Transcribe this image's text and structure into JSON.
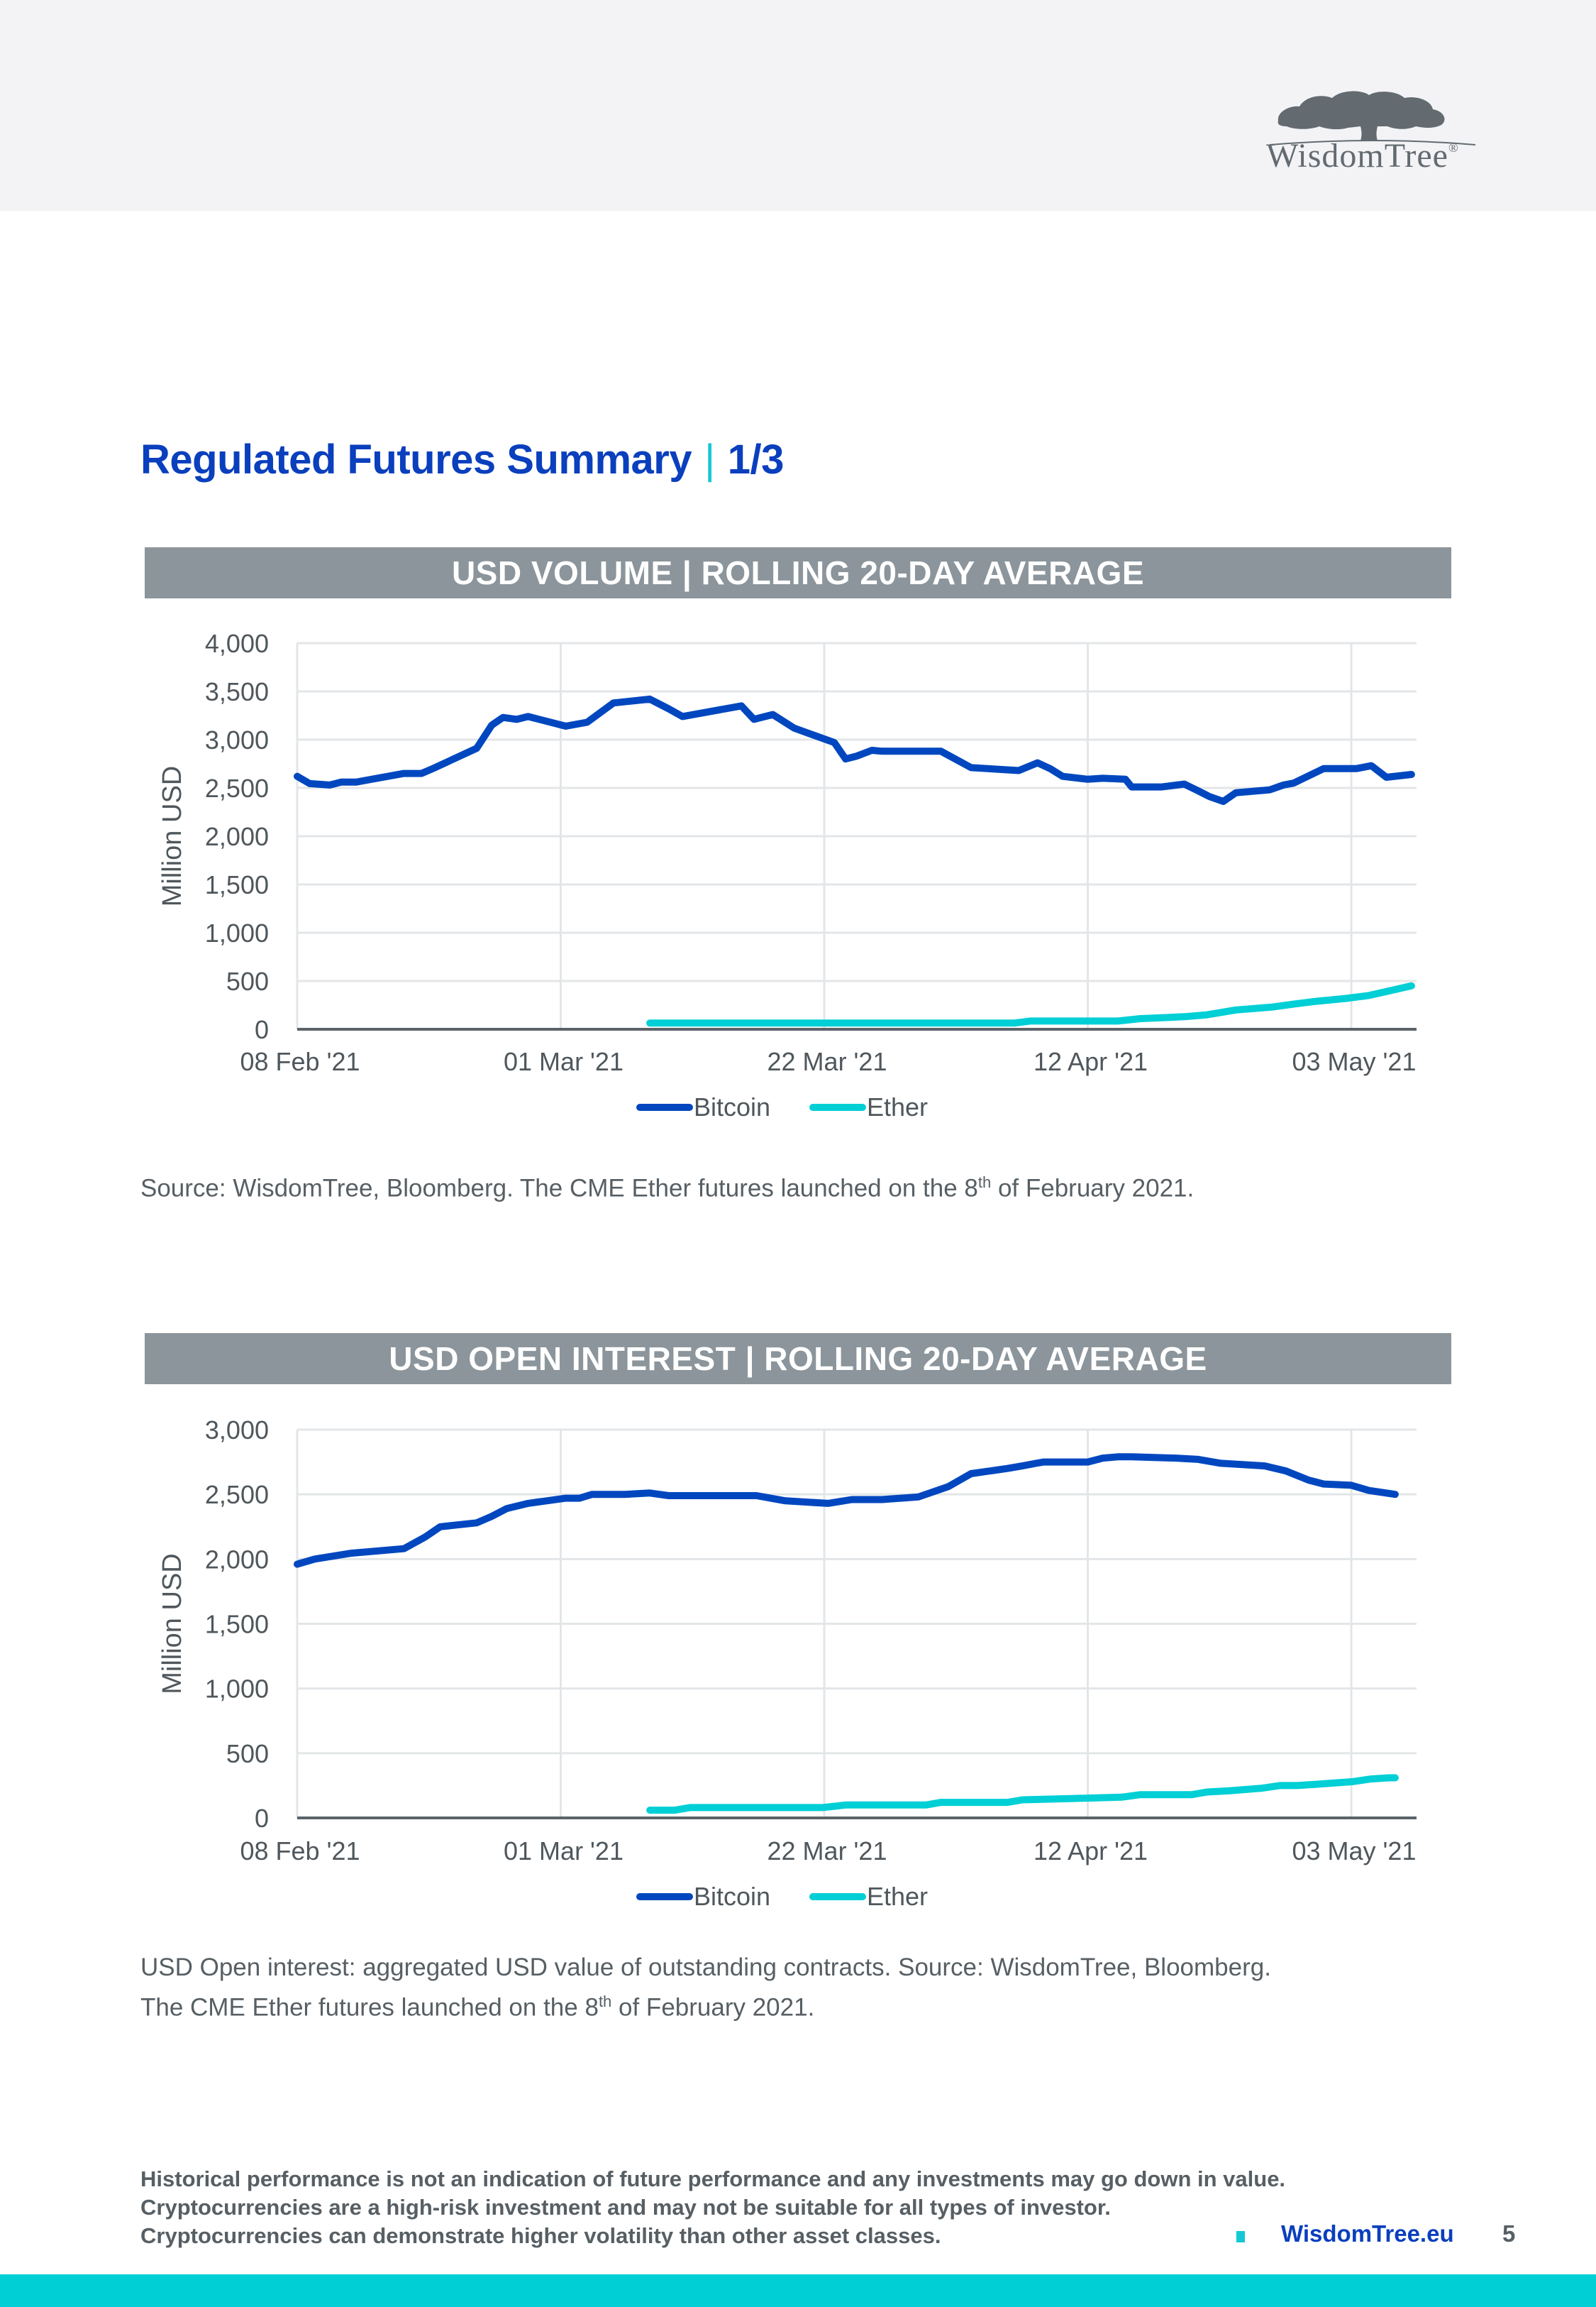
{
  "header": {
    "logo_text": "WisdomTree",
    "logo_registered": "®"
  },
  "page": {
    "title": "Regulated Futures Summary",
    "title_separator": "|",
    "title_page": "1/3",
    "page_number": "5",
    "footer_link": "WisdomTree.eu"
  },
  "colors": {
    "brand_blue": "#0a3fbd",
    "bitcoin": "#0047bf",
    "ether": "#00cfd6",
    "band_gray": "#8b959b",
    "grid": "#e3e6e8",
    "text": "#575f64"
  },
  "notes": {
    "chart1_source_pre": "Source: WisdomTree, Bloomberg. The CME Ether futures launched on the 8",
    "chart1_source_sup": "th",
    "chart1_source_post": " of February 2021.",
    "chart2_line1": "USD Open interest: aggregated USD value of outstanding contracts. Source: WisdomTree, Bloomberg.",
    "chart2_line2_pre": "The CME Ether futures launched on the 8",
    "chart2_line2_sup": "th",
    "chart2_line2_post": " of February 2021."
  },
  "disclaimer": [
    "Historical performance is not an indication of future performance and any investments may go down in value.",
    "Cryptocurrencies are a high-risk investment and may not be suitable for all types of investor.",
    "Cryptocurrencies can demonstrate higher volatility than other asset classes."
  ],
  "chart_data": [
    {
      "type": "line",
      "title": "USD VOLUME | ROLLING 20-DAY AVERAGE",
      "xlabel": "",
      "ylabel": "Million USD",
      "x_unit": "days since 08 Feb '21",
      "xlim": [
        0,
        88.8
      ],
      "ylim": [
        0,
        4000
      ],
      "yticks": [
        0,
        500,
        1000,
        1500,
        2000,
        2500,
        3000,
        3500,
        4000
      ],
      "ytick_labels": [
        "0",
        "500",
        "1,000",
        "1,500",
        "2,000",
        "2,500",
        "3,000",
        "3,500",
        "4,000"
      ],
      "xticks": [
        0,
        21,
        42,
        63,
        84
      ],
      "xtick_labels": [
        "08 Feb '21",
        "01 Mar '21",
        "22 Mar '21",
        "12 Apr '21",
        "03 May '21"
      ],
      "grid": true,
      "legend": "bottom-center",
      "series": [
        {
          "name": "Bitcoin",
          "color": "#0047bf",
          "x": [
            0,
            1,
            2.6,
            3.5,
            4.7,
            8.5,
            9.9,
            10.8,
            14.3,
            15.5,
            16.4,
            17.5,
            18.4,
            21.4,
            23.1,
            25.2,
            28.1,
            29.6,
            30.7,
            35.4,
            36.4,
            37.9,
            39.6,
            42.8,
            43.7,
            44.6,
            45.8,
            46.6,
            51.3,
            53.7,
            57.5,
            59,
            60,
            61,
            63,
            64.2,
            66,
            66.5,
            68.9,
            70.7,
            71.8,
            72.7,
            73.8,
            74.8,
            77.5,
            78.6,
            79.4,
            81.8,
            84.4,
            85.6,
            86.8,
            88.8
          ],
          "values": [
            2620,
            2545,
            2530,
            2560,
            2560,
            2650,
            2650,
            2700,
            2910,
            3150,
            3230,
            3210,
            3240,
            3140,
            3180,
            3380,
            3420,
            3320,
            3240,
            3350,
            3210,
            3260,
            3120,
            2970,
            2800,
            2830,
            2890,
            2880,
            2880,
            2710,
            2680,
            2760,
            2700,
            2620,
            2590,
            2600,
            2590,
            2510,
            2510,
            2540,
            2470,
            2410,
            2360,
            2450,
            2480,
            2530,
            2550,
            2700,
            2700,
            2730,
            2610,
            2640
          ]
        },
        {
          "name": "Ether",
          "color": "#00cfd6",
          "x": [
            28.1,
            57.2,
            58.4,
            65.4,
            67.2,
            70.7,
            72.5,
            74.8,
            77.7,
            79.4,
            81.2,
            83.6,
            85.4,
            87.1,
            88.8
          ],
          "values": [
            65,
            65,
            85,
            85,
            110,
            130,
            150,
            200,
            230,
            260,
            290,
            320,
            350,
            400,
            450
          ]
        }
      ]
    },
    {
      "type": "line",
      "title": "USD OPEN INTEREST | ROLLING 20-DAY AVERAGE",
      "xlabel": "",
      "ylabel": "Million USD",
      "x_unit": "days since 08 Feb '21",
      "xlim": [
        0,
        88.8
      ],
      "ylim": [
        0,
        3000
      ],
      "yticks": [
        0,
        500,
        1000,
        1500,
        2000,
        2500,
        3000
      ],
      "ytick_labels": [
        "0",
        "500",
        "1,000",
        "1,500",
        "2,000",
        "2,500",
        "3,000"
      ],
      "xticks": [
        0,
        21,
        42,
        63,
        84
      ],
      "xtick_labels": [
        "08 Feb '21",
        "01 Mar '21",
        "22 Mar '21",
        "12 Apr '21",
        "03 May '21"
      ],
      "grid": true,
      "legend": "bottom-center",
      "series": [
        {
          "name": "Bitcoin",
          "color": "#0047bf",
          "x": [
            0,
            1.4,
            4.3,
            8.5,
            10.2,
            11.4,
            14.3,
            15.5,
            16.7,
            18.4,
            21.4,
            22.5,
            23.5,
            26.1,
            28.1,
            29.6,
            36.6,
            38.9,
            42.3,
            44.2,
            46.6,
            49.5,
            51.9,
            53.7,
            56.6,
            57.8,
            58.9,
            59.5,
            63,
            64.2,
            65.4,
            66.5,
            70,
            71.8,
            73.6,
            77.1,
            78.8,
            80.6,
            81.8,
            84,
            85.4,
            87.5
          ],
          "values": [
            1960,
            2000,
            2045,
            2080,
            2170,
            2250,
            2280,
            2330,
            2390,
            2430,
            2470,
            2470,
            2500,
            2500,
            2510,
            2490,
            2490,
            2450,
            2430,
            2460,
            2460,
            2480,
            2560,
            2660,
            2700,
            2720,
            2740,
            2750,
            2750,
            2780,
            2790,
            2790,
            2780,
            2770,
            2740,
            2720,
            2680,
            2610,
            2580,
            2570,
            2530,
            2500
          ]
        },
        {
          "name": "Ether",
          "color": "#00cfd6",
          "x": [
            28.1,
            30.1,
            31.3,
            41.9,
            43.7,
            50.1,
            51.3,
            56.6,
            57.8,
            61.9,
            65.7,
            67.2,
            71.3,
            72.5,
            74.3,
            76.9,
            78.3,
            79.7,
            81.2,
            84.1,
            85.5,
            87,
            87.5
          ],
          "values": [
            60,
            60,
            80,
            80,
            100,
            100,
            120,
            120,
            140,
            150,
            160,
            180,
            180,
            200,
            210,
            230,
            250,
            250,
            260,
            280,
            300,
            310,
            310
          ]
        }
      ]
    }
  ]
}
